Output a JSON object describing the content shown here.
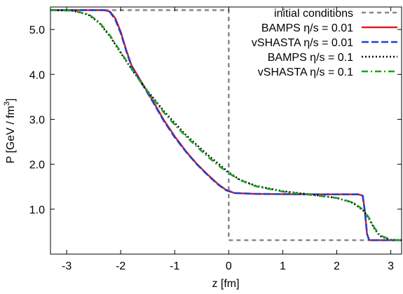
{
  "chart_data": {
    "type": "line",
    "title": "",
    "xlabel": "z [fm]",
    "ylabel_main": "P [GeV / fm",
    "ylabel_sup": "3",
    "ylabel_close": "]",
    "xlim": [
      -3.3,
      3.2
    ],
    "ylim": [
      0.0,
      5.5
    ],
    "xticks": [
      -3,
      -2,
      -1,
      0,
      1,
      2,
      3
    ],
    "xtick_labels": [
      "-3",
      "-2",
      "-1",
      "0",
      "1",
      "2",
      "3"
    ],
    "yticks": [
      1.0,
      2.0,
      3.0,
      4.0,
      5.0
    ],
    "ytick_labels": [
      "1.0",
      "2.0",
      "3.0",
      "4.0",
      "5.0"
    ],
    "grid": false,
    "legend_position": "top-right",
    "series": [
      {
        "name": "initial conditions",
        "color": "#888888",
        "dash": "short-dash",
        "x": [
          -3.3,
          0.0,
          0.0,
          3.2
        ],
        "y": [
          5.43,
          5.43,
          0.31,
          0.31
        ]
      },
      {
        "name": "BAMPS η/s = 0.01",
        "color": "#e41a1c",
        "dash": "solid",
        "x": [
          -3.3,
          -2.3,
          -2.2,
          -2.1,
          -2.0,
          -1.9,
          -1.8,
          -1.6,
          -1.4,
          -1.2,
          -1.0,
          -0.8,
          -0.6,
          -0.4,
          -0.2,
          -0.05,
          0.1,
          0.5,
          1.0,
          1.5,
          2.0,
          2.4,
          2.48,
          2.52,
          2.56,
          2.6,
          3.2
        ],
        "y": [
          5.43,
          5.43,
          5.4,
          5.25,
          4.95,
          4.55,
          4.2,
          3.8,
          3.4,
          2.98,
          2.62,
          2.3,
          2.02,
          1.78,
          1.56,
          1.43,
          1.36,
          1.34,
          1.335,
          1.33,
          1.33,
          1.33,
          1.3,
          0.95,
          0.45,
          0.31,
          0.31
        ]
      },
      {
        "name": "vSHASTA η/s = 0.01",
        "color": "#1f3fd6",
        "dash": "long-dash",
        "x": [
          -3.3,
          -2.3,
          -2.2,
          -2.1,
          -2.0,
          -1.9,
          -1.8,
          -1.6,
          -1.4,
          -1.2,
          -1.0,
          -0.8,
          -0.6,
          -0.4,
          -0.2,
          -0.05,
          0.1,
          0.5,
          1.0,
          1.5,
          2.0,
          2.4,
          2.48,
          2.52,
          2.56,
          2.6,
          3.2
        ],
        "y": [
          5.43,
          5.43,
          5.39,
          5.22,
          4.92,
          4.53,
          4.18,
          3.78,
          3.38,
          2.96,
          2.6,
          2.29,
          2.01,
          1.77,
          1.55,
          1.42,
          1.36,
          1.34,
          1.335,
          1.33,
          1.33,
          1.33,
          1.3,
          0.95,
          0.45,
          0.31,
          0.31
        ]
      },
      {
        "name": "BAMPS η/s = 0.1",
        "color": "#000000",
        "dash": "dotted",
        "x": [
          -3.3,
          -2.9,
          -2.6,
          -2.4,
          -2.2,
          -2.0,
          -1.8,
          -1.6,
          -1.4,
          -1.2,
          -1.0,
          -0.8,
          -0.6,
          -0.4,
          -0.2,
          0.0,
          0.2,
          0.5,
          1.0,
          1.5,
          2.0,
          2.3,
          2.5,
          2.6,
          2.7,
          2.8,
          3.0,
          3.2
        ],
        "y": [
          5.43,
          5.42,
          5.33,
          5.15,
          4.85,
          4.48,
          4.12,
          3.78,
          3.48,
          3.18,
          2.92,
          2.66,
          2.44,
          2.22,
          2.02,
          1.82,
          1.66,
          1.52,
          1.4,
          1.33,
          1.25,
          1.14,
          0.96,
          0.78,
          0.56,
          0.4,
          0.32,
          0.31
        ]
      },
      {
        "name": "vSHASTA η/s = 0.1",
        "color": "#1aa31a",
        "dash": "dash-dot",
        "x": [
          -3.3,
          -2.9,
          -2.6,
          -2.4,
          -2.2,
          -2.0,
          -1.8,
          -1.6,
          -1.4,
          -1.2,
          -1.0,
          -0.8,
          -0.6,
          -0.4,
          -0.2,
          0.0,
          0.2,
          0.5,
          1.0,
          1.5,
          2.0,
          2.3,
          2.5,
          2.6,
          2.7,
          2.8,
          3.0,
          3.2
        ],
        "y": [
          5.43,
          5.42,
          5.34,
          5.17,
          4.87,
          4.5,
          4.13,
          3.78,
          3.46,
          3.15,
          2.88,
          2.63,
          2.4,
          2.18,
          1.98,
          1.8,
          1.65,
          1.51,
          1.39,
          1.32,
          1.25,
          1.15,
          0.98,
          0.8,
          0.58,
          0.42,
          0.32,
          0.31
        ]
      }
    ]
  }
}
